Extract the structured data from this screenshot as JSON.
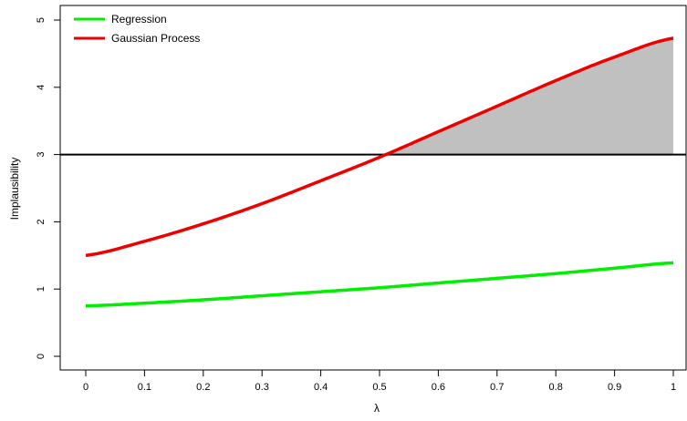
{
  "chart_data": {
    "type": "line",
    "xlabel": "λ",
    "ylabel": "Implausibility",
    "xlim": [
      0,
      1
    ],
    "ylim": [
      0,
      5
    ],
    "x_ticks": [
      "0",
      "0.1",
      "0.2",
      "0.3",
      "0.4",
      "0.5",
      "0.6",
      "0.7",
      "0.8",
      "0.9",
      "1"
    ],
    "y_ticks": [
      "0",
      "1",
      "2",
      "3",
      "4",
      "5"
    ],
    "threshold": 3,
    "shaded_region": "area between Gaussian Process curve and threshold where curve exceeds 3",
    "shade_color": "#c0c0c0",
    "x": [
      0,
      0.1,
      0.2,
      0.3,
      0.4,
      0.5,
      0.6,
      0.7,
      0.8,
      0.9,
      1.0
    ],
    "series": [
      {
        "name": "Regression",
        "color": "#00ee00",
        "values": [
          0.75,
          0.79,
          0.84,
          0.9,
          0.96,
          1.02,
          1.09,
          1.16,
          1.23,
          1.31,
          1.39
        ]
      },
      {
        "name": "Gaussian Process",
        "color": "#ee0000",
        "values": [
          1.5,
          1.71,
          1.97,
          2.27,
          2.61,
          2.96,
          3.34,
          3.72,
          4.1,
          4.45,
          4.73
        ]
      }
    ],
    "legend_position": "top-left",
    "grid": false
  }
}
